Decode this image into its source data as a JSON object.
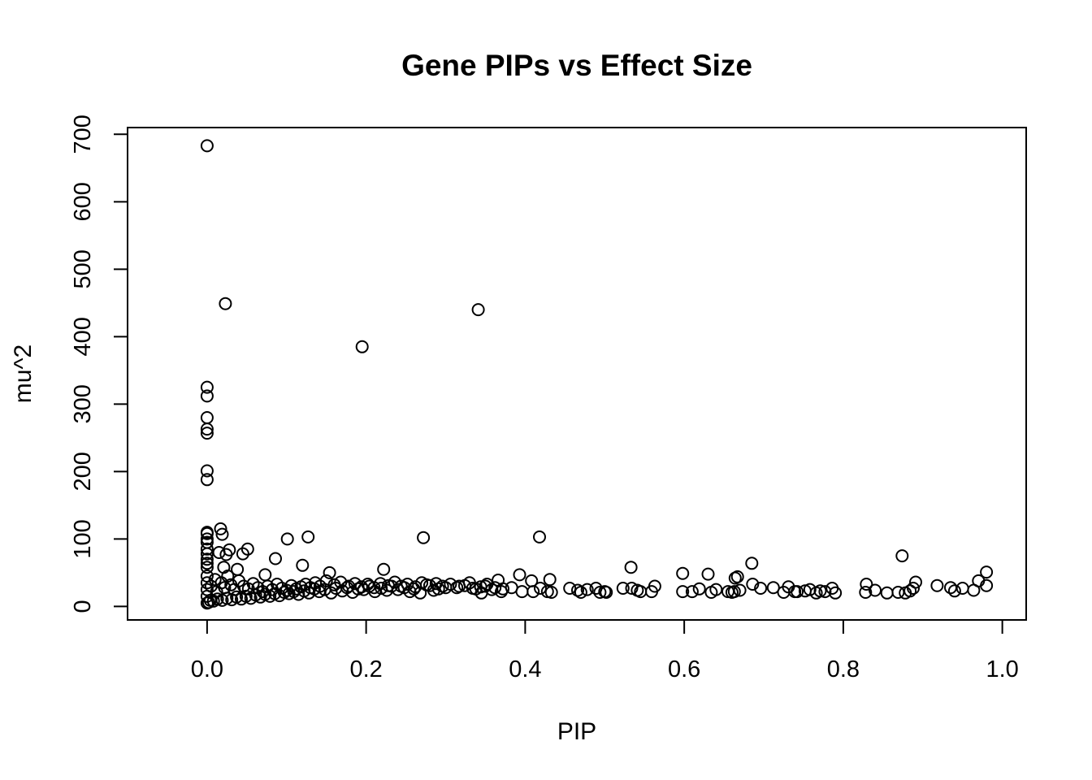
{
  "chart_data": {
    "type": "scatter",
    "title": "Gene PIPs vs Effect Size",
    "xlabel": "PIP",
    "ylabel": "mu^2",
    "xlim": [
      -0.1,
      1.03
    ],
    "ylim": [
      -20,
      710
    ],
    "x_ticks": [
      0.0,
      0.2,
      0.4,
      0.6,
      0.8,
      1.0
    ],
    "x_tick_labels": [
      "0.0",
      "0.2",
      "0.4",
      "0.6",
      "0.8",
      "1.0"
    ],
    "y_ticks": [
      0,
      100,
      200,
      300,
      400,
      500,
      600,
      700
    ],
    "y_tick_labels": [
      "0",
      "100",
      "200",
      "300",
      "400",
      "500",
      "600",
      "700"
    ],
    "grid": false,
    "legend": "none",
    "marker": "open-circle",
    "colors": {
      "marker": "#000000",
      "axes": "#000000",
      "background": "#ffffff"
    },
    "points": [
      [
        0.0,
        683
      ],
      [
        0.023,
        449
      ],
      [
        0.341,
        440
      ],
      [
        0.195,
        385
      ],
      [
        0.0,
        325
      ],
      [
        0.0,
        312
      ],
      [
        0.0,
        280
      ],
      [
        0.0,
        263
      ],
      [
        0.0,
        257
      ],
      [
        0.0,
        201
      ],
      [
        0.0,
        188
      ],
      [
        0.0,
        110
      ],
      [
        0.0,
        108
      ],
      [
        0.0,
        100
      ],
      [
        0.0,
        95
      ],
      [
        0.0,
        85
      ],
      [
        0.0,
        78
      ],
      [
        0.0,
        70
      ],
      [
        0.0,
        64
      ],
      [
        0.0,
        58
      ],
      [
        0.017,
        115
      ],
      [
        0.019,
        107
      ],
      [
        0.127,
        103
      ],
      [
        0.101,
        100
      ],
      [
        0.272,
        102
      ],
      [
        0.418,
        103
      ],
      [
        0.874,
        75
      ],
      [
        0.086,
        71
      ],
      [
        0.685,
        64
      ],
      [
        0.12,
        61
      ],
      [
        0.533,
        58
      ],
      [
        0.222,
        55
      ],
      [
        0.015,
        80
      ],
      [
        0.024,
        77
      ],
      [
        0.028,
        84
      ],
      [
        0.045,
        78
      ],
      [
        0.051,
        85
      ],
      [
        0.038,
        55
      ],
      [
        0.021,
        58
      ],
      [
        0.98,
        51
      ],
      [
        0.598,
        49
      ],
      [
        0.63,
        48
      ],
      [
        0.393,
        47
      ],
      [
        0.154,
        50
      ],
      [
        0.073,
        47
      ],
      [
        0.664,
        42
      ],
      [
        0.366,
        39
      ],
      [
        0.431,
        40
      ],
      [
        0.408,
        38
      ],
      [
        0.97,
        38
      ],
      [
        0.891,
        36
      ],
      [
        0.829,
        33
      ],
      [
        0.918,
        31
      ],
      [
        0.935,
        28
      ],
      [
        0.95,
        27
      ],
      [
        0.964,
        24
      ],
      [
        0.98,
        31
      ],
      [
        0.94,
        23
      ],
      [
        0.686,
        33
      ],
      [
        0.696,
        27
      ],
      [
        0.712,
        28
      ],
      [
        0.731,
        29
      ],
      [
        0.742,
        22
      ],
      [
        0.758,
        25
      ],
      [
        0.771,
        23
      ],
      [
        0.786,
        27
      ],
      [
        0.79,
        20
      ],
      [
        0.725,
        21
      ],
      [
        0.739,
        22
      ],
      [
        0.752,
        23
      ],
      [
        0.766,
        20
      ],
      [
        0.777,
        22
      ],
      [
        0.828,
        21
      ],
      [
        0.84,
        24
      ],
      [
        0.855,
        20
      ],
      [
        0.869,
        21
      ],
      [
        0.878,
        20
      ],
      [
        0.884,
        23
      ],
      [
        0.888,
        27
      ],
      [
        0.598,
        22
      ],
      [
        0.61,
        22
      ],
      [
        0.619,
        26
      ],
      [
        0.634,
        21
      ],
      [
        0.64,
        25
      ],
      [
        0.655,
        22
      ],
      [
        0.66,
        21
      ],
      [
        0.663,
        22
      ],
      [
        0.67,
        24
      ],
      [
        0.667,
        44
      ],
      [
        0.534,
        27
      ],
      [
        0.541,
        24
      ],
      [
        0.545,
        22
      ],
      [
        0.559,
        22
      ],
      [
        0.563,
        30
      ],
      [
        0.523,
        27
      ],
      [
        0.456,
        27
      ],
      [
        0.466,
        24
      ],
      [
        0.47,
        21
      ],
      [
        0.478,
        25
      ],
      [
        0.489,
        27
      ],
      [
        0.494,
        21
      ],
      [
        0.5,
        22
      ],
      [
        0.502,
        21
      ],
      [
        0.396,
        22
      ],
      [
        0.41,
        22
      ],
      [
        0.419,
        27
      ],
      [
        0.428,
        22
      ],
      [
        0.433,
        21
      ],
      [
        0.383,
        28
      ],
      [
        0.37,
        22
      ],
      [
        0.35,
        30
      ],
      [
        0.338,
        26
      ],
      [
        0.345,
        20
      ],
      [
        0.358,
        25
      ],
      [
        0.33,
        35
      ],
      [
        0.317,
        30
      ],
      [
        0.3,
        28
      ],
      [
        0.291,
        26
      ],
      [
        0.285,
        24
      ],
      [
        0.276,
        32
      ],
      [
        0.268,
        20
      ],
      [
        0.26,
        26
      ],
      [
        0.255,
        22
      ],
      [
        0.248,
        28
      ],
      [
        0.24,
        25
      ],
      [
        0.232,
        30
      ],
      [
        0.226,
        24
      ],
      [
        0.219,
        27
      ],
      [
        0.211,
        22
      ],
      [
        0.204,
        30
      ],
      [
        0.197,
        25
      ],
      [
        0.19,
        26
      ],
      [
        0.183,
        21
      ],
      [
        0.176,
        28
      ],
      [
        0.17,
        23
      ],
      [
        0.162,
        27
      ],
      [
        0.156,
        20
      ],
      [
        0.148,
        25
      ],
      [
        0.141,
        22
      ],
      [
        0.135,
        26
      ],
      [
        0.128,
        20
      ],
      [
        0.122,
        23
      ],
      [
        0.115,
        18
      ],
      [
        0.109,
        22
      ],
      [
        0.103,
        19
      ],
      [
        0.097,
        21
      ],
      [
        0.091,
        16
      ],
      [
        0.085,
        19
      ],
      [
        0.079,
        15
      ],
      [
        0.073,
        18
      ],
      [
        0.067,
        14
      ],
      [
        0.061,
        17
      ],
      [
        0.055,
        12
      ],
      [
        0.049,
        15
      ],
      [
        0.043,
        11
      ],
      [
        0.037,
        14
      ],
      [
        0.031,
        10
      ],
      [
        0.025,
        12
      ],
      [
        0.019,
        9
      ],
      [
        0.013,
        11
      ],
      [
        0.008,
        8
      ],
      [
        0.004,
        9
      ],
      [
        0.002,
        6
      ],
      [
        0.0,
        5
      ],
      [
        0.0,
        15
      ],
      [
        0.0,
        25
      ],
      [
        0.0,
        35
      ],
      [
        0.0,
        45
      ],
      [
        0.005,
        30
      ],
      [
        0.01,
        40
      ],
      [
        0.012,
        22
      ],
      [
        0.018,
        35
      ],
      [
        0.022,
        28
      ],
      [
        0.026,
        45
      ],
      [
        0.03,
        32
      ],
      [
        0.034,
        25
      ],
      [
        0.04,
        38
      ],
      [
        0.046,
        30
      ],
      [
        0.052,
        26
      ],
      [
        0.058,
        34
      ],
      [
        0.064,
        28
      ],
      [
        0.07,
        22
      ],
      [
        0.076,
        30
      ],
      [
        0.082,
        25
      ],
      [
        0.088,
        33
      ],
      [
        0.094,
        27
      ],
      [
        0.1,
        24
      ],
      [
        0.106,
        31
      ],
      [
        0.112,
        26
      ],
      [
        0.118,
        29
      ],
      [
        0.124,
        33
      ],
      [
        0.13,
        28
      ],
      [
        0.136,
        35
      ],
      [
        0.142,
        30
      ],
      [
        0.15,
        38
      ],
      [
        0.16,
        32
      ],
      [
        0.168,
        36
      ],
      [
        0.178,
        30
      ],
      [
        0.186,
        34
      ],
      [
        0.194,
        29
      ],
      [
        0.202,
        33
      ],
      [
        0.21,
        28
      ],
      [
        0.218,
        34
      ],
      [
        0.228,
        31
      ],
      [
        0.236,
        36
      ],
      [
        0.244,
        30
      ],
      [
        0.252,
        33
      ],
      [
        0.262,
        29
      ],
      [
        0.27,
        35
      ],
      [
        0.28,
        31
      ],
      [
        0.288,
        34
      ],
      [
        0.296,
        30
      ],
      [
        0.306,
        33
      ],
      [
        0.314,
        28
      ],
      [
        0.324,
        31
      ],
      [
        0.334,
        27
      ],
      [
        0.344,
        29
      ],
      [
        0.352,
        33
      ],
      [
        0.362,
        28
      ],
      [
        0.372,
        26
      ]
    ]
  }
}
